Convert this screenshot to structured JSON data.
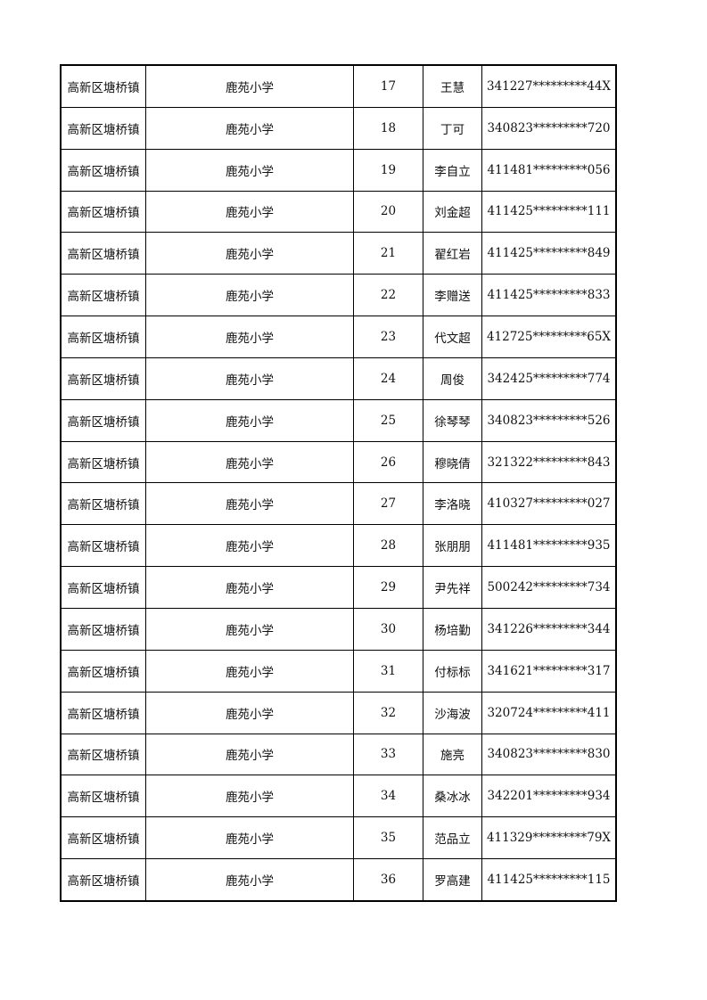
{
  "rows": [
    [
      "高新区塘桥镇",
      "鹿苑小学",
      "17",
      "王慧",
      "341227*********44X"
    ],
    [
      "高新区塘桥镇",
      "鹿苑小学",
      "18",
      "丁可",
      "340823*********720"
    ],
    [
      "高新区塘桥镇",
      "鹿苑小学",
      "19",
      "李自立",
      "411481*********056"
    ],
    [
      "高新区塘桥镇",
      "鹿苑小学",
      "20",
      "刘金超",
      "411425*********111"
    ],
    [
      "高新区塘桥镇",
      "鹿苑小学",
      "21",
      "翟红岩",
      "411425*********849"
    ],
    [
      "高新区塘桥镇",
      "鹿苑小学",
      "22",
      "李赠送",
      "411425*********833"
    ],
    [
      "高新区塘桥镇",
      "鹿苑小学",
      "23",
      "代文超",
      "412725*********65X"
    ],
    [
      "高新区塘桥镇",
      "鹿苑小学",
      "24",
      "周俊",
      "342425*********774"
    ],
    [
      "高新区塘桥镇",
      "鹿苑小学",
      "25",
      "徐琴琴",
      "340823*********526"
    ],
    [
      "高新区塘桥镇",
      "鹿苑小学",
      "26",
      "穆晓倩",
      "321322*********843"
    ],
    [
      "高新区塘桥镇",
      "鹿苑小学",
      "27",
      "李洛晓",
      "410327*********027"
    ],
    [
      "高新区塘桥镇",
      "鹿苑小学",
      "28",
      "张朋朋",
      "411481*********935"
    ],
    [
      "高新区塘桥镇",
      "鹿苑小学",
      "29",
      "尹先祥",
      "500242*********734"
    ],
    [
      "高新区塘桥镇",
      "鹿苑小学",
      "30",
      "杨培勤",
      "341226*********344"
    ],
    [
      "高新区塘桥镇",
      "鹿苑小学",
      "31",
      "付标标",
      "341621*********317"
    ],
    [
      "高新区塘桥镇",
      "鹿苑小学",
      "32",
      "沙海波",
      "320724*********411"
    ],
    [
      "高新区塘桥镇",
      "鹿苑小学",
      "33",
      "施亮",
      "340823*********830"
    ],
    [
      "高新区塘桥镇",
      "鹿苑小学",
      "34",
      "桑冰冰",
      "342201*********934"
    ],
    [
      "高新区塘桥镇",
      "鹿苑小学",
      "35",
      "范品立",
      "411329*********79X"
    ],
    [
      "高新区塘桥镇",
      "鹿苑小学",
      "36",
      "罗高建",
      "411425*********115"
    ]
  ]
}
